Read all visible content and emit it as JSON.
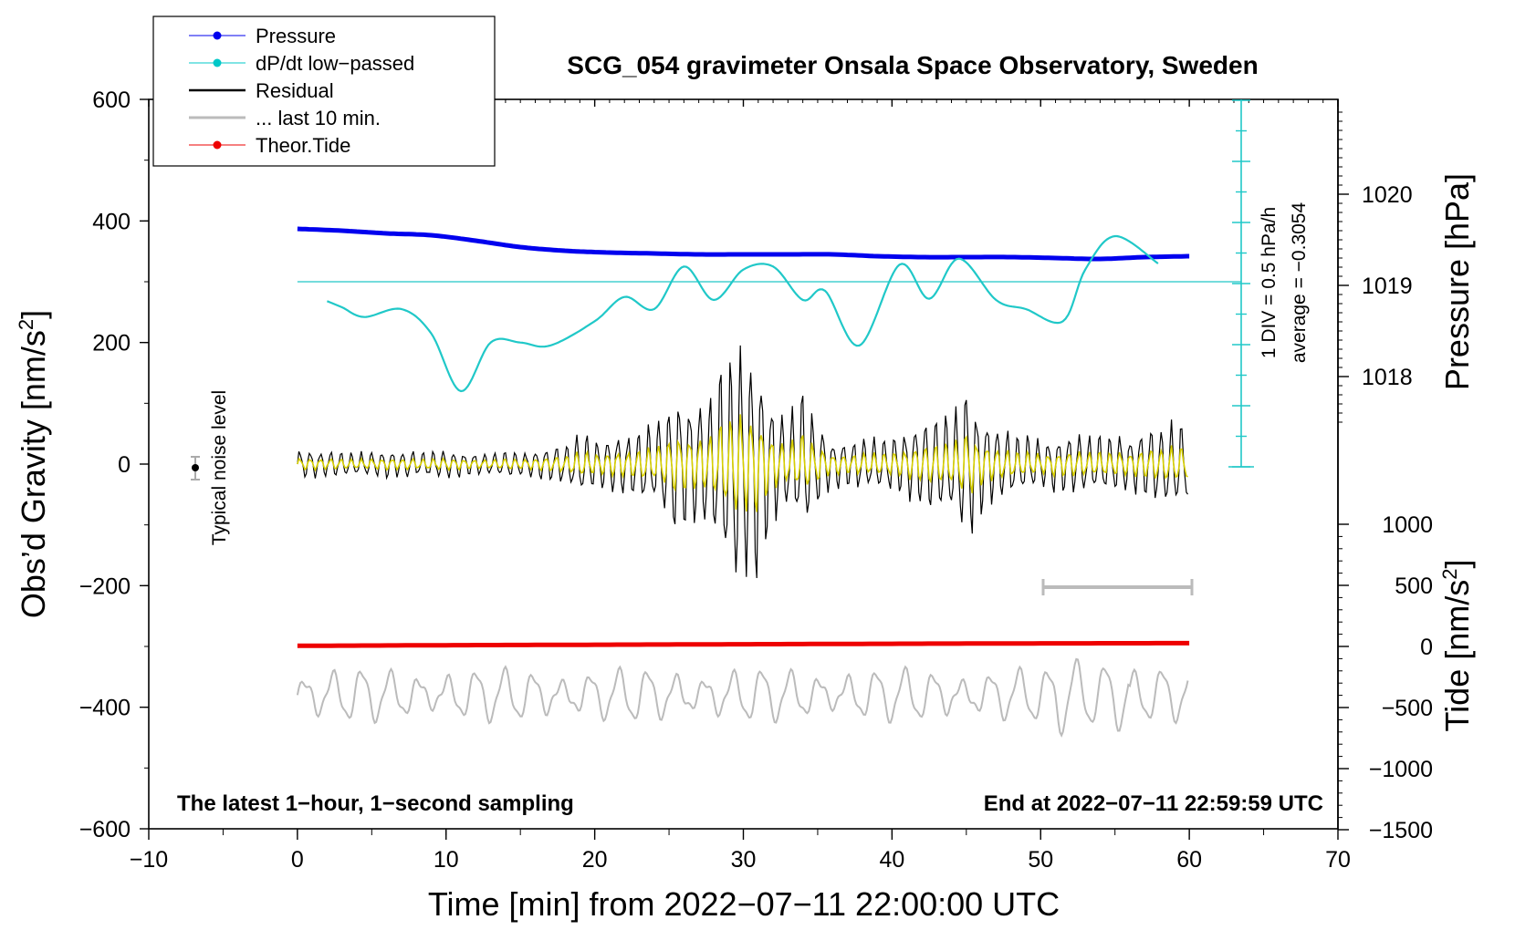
{
  "chart_data": {
    "type": "line",
    "title": "SCG_054 gravimeter Onsala Space Observatory, Sweden",
    "xlabel": "Time [min] from 2022−07−11 22:00:00 UTC",
    "ylabel_left": "Obs’d Gravity [nm/s",
    "ylabel_left_sup": "2",
    "ylabel_left_end": "]",
    "ylabel_pressure": "Pressure [hPa]",
    "ylabel_tide": "Tide [nm/s",
    "ylabel_tide_sup": "2",
    "ylabel_tide_end": "]",
    "xlim": [
      -10,
      70
    ],
    "ylim": [
      -600,
      600
    ],
    "x_ticks": [
      -10,
      0,
      10,
      20,
      30,
      40,
      50,
      60,
      70
    ],
    "x_tick_labels": [
      "−10",
      "0",
      "10",
      "20",
      "30",
      "40",
      "50",
      "60",
      "70"
    ],
    "y_ticks": [
      -600,
      -400,
      -200,
      0,
      200,
      400,
      600
    ],
    "y_tick_labels": [
      "−600",
      "−400",
      "−200",
      "0",
      "200",
      "400",
      "600"
    ],
    "pressure_ticks": [
      1018,
      1019,
      1020
    ],
    "pressure_tick_labels": [
      "1018",
      "1019",
      "1020"
    ],
    "tide_ticks": [
      -1500,
      -1000,
      -500,
      0,
      500,
      1000
    ],
    "tide_tick_labels": [
      "−1500",
      "−1000",
      "−500",
      "0",
      "500",
      "1000"
    ],
    "bottom_left_note": "The latest 1−hour, 1−second sampling",
    "bottom_right_note": "End at 2022−07−11 22:59:59 UTC",
    "noise_label": "Typical noise level",
    "scale_bar_text_1": "1 DIV = 0.5 hPa/h",
    "scale_bar_text_2": "average = −0.3054",
    "legend": [
      {
        "label": "Pressure",
        "color": "#0000ee",
        "marker": true,
        "width": 1
      },
      {
        "label": "dP/dt low−passed",
        "color": "#00c8c8",
        "marker": true,
        "width": 1
      },
      {
        "label": "Residual",
        "color": "#000000",
        "marker": false,
        "width": 2.5
      },
      {
        "label": "... last 10 min.",
        "color": "#bbbbbb",
        "marker": false,
        "width": 3
      },
      {
        "label": "Theor.Tide",
        "color": "#ee0000",
        "marker": true,
        "width": 1
      }
    ],
    "colors": {
      "pressure": "#0000ee",
      "dpdt": "#20c8c8",
      "residual": "#000000",
      "residual_lowpass": "#d8d000",
      "last10": "#bbbbbb",
      "tide": "#ee0000"
    },
    "series": [
      {
        "name": "Pressure",
        "unit": "hPa",
        "x": [
          0,
          3,
          6,
          9,
          12,
          15,
          18,
          21,
          24,
          27,
          30,
          33,
          36,
          39,
          42,
          45,
          48,
          51,
          54,
          57,
          60
        ],
        "values": [
          1019.62,
          1019.6,
          1019.57,
          1019.55,
          1019.49,
          1019.42,
          1019.38,
          1019.36,
          1019.35,
          1019.34,
          1019.34,
          1019.34,
          1019.34,
          1019.32,
          1019.31,
          1019.31,
          1019.31,
          1019.3,
          1019.29,
          1019.31,
          1019.32
        ]
      },
      {
        "name": "dP/dt low-passed",
        "unit": "gravity-axis units (baseline 300 = average)",
        "x": [
          2,
          3,
          4.5,
          7,
          9,
          11,
          13,
          15,
          17,
          20,
          22,
          24,
          26,
          28,
          30,
          32,
          34,
          35.5,
          37.8,
          40.5,
          42.5,
          44.5,
          47,
          49,
          51.5,
          53,
          55,
          57.9
        ],
        "values": [
          268,
          258,
          242,
          255,
          215,
          120,
          200,
          200,
          195,
          235,
          275,
          255,
          325,
          270,
          320,
          325,
          270,
          285,
          195,
          328,
          272,
          338,
          270,
          255,
          235,
          320,
          375,
          330
        ]
      },
      {
        "name": "Residual",
        "unit": "nm/s2",
        "x": [
          0,
          2,
          4,
          6,
          8,
          10,
          12,
          14,
          16,
          18,
          19,
          20,
          22,
          24,
          25.5,
          27,
          28,
          29,
          30,
          31,
          32,
          33,
          34,
          35,
          36,
          38,
          40,
          42,
          44,
          45,
          46,
          48,
          50,
          52,
          54,
          56,
          58,
          59.5,
          60
        ],
        "values": [
          24,
          20,
          18,
          22,
          20,
          22,
          18,
          20,
          22,
          30,
          50,
          40,
          50,
          70,
          110,
          100,
          120,
          180,
          210,
          180,
          100,
          80,
          110,
          70,
          40,
          40,
          45,
          70,
          85,
          130,
          85,
          50,
          40,
          45,
          50,
          45,
          60,
          70,
          50
        ]
      },
      {
        "name": "... last 10 min.",
        "unit": "gravity-axis units (offset −380)",
        "x": [
          50,
          51,
          52,
          53,
          54,
          55,
          56,
          57,
          58,
          59,
          60
        ],
        "values": [
          -370,
          -390,
          -420,
          -430,
          -320,
          -350,
          -380,
          -360,
          -390,
          -400,
          -340
        ]
      },
      {
        "name": "Theor.Tide",
        "unit": "nm/s2",
        "x": [
          0,
          10,
          20,
          30,
          40,
          50,
          60
        ],
        "values": [
          5,
          10,
          14,
          18,
          22,
          25,
          27
        ]
      }
    ]
  }
}
